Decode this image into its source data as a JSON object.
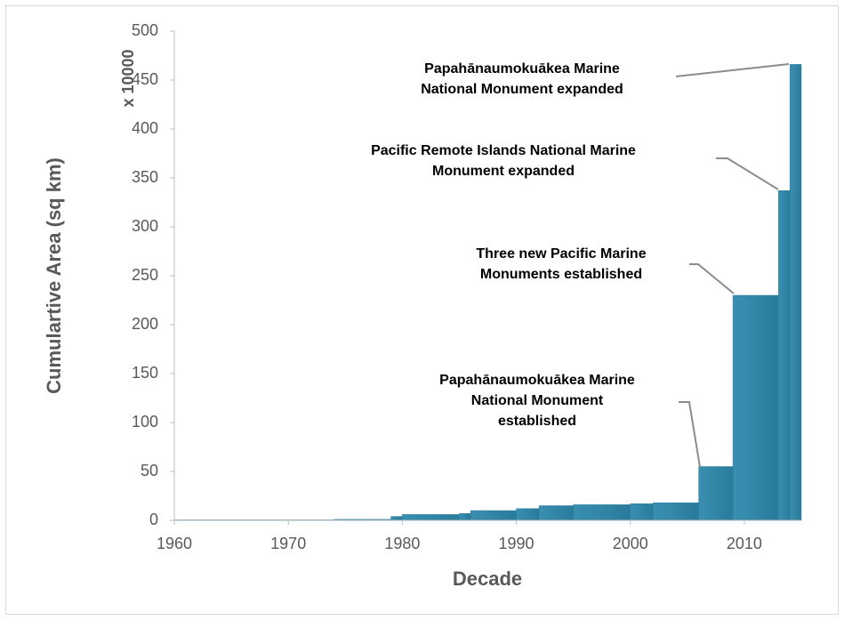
{
  "chart_data": {
    "type": "step_area",
    "xlabel": "Decade",
    "ylabel": "Cumulartive Area (sq km)",
    "yunit": "x 10000",
    "x": [
      1960,
      1974,
      1979,
      1980,
      1985,
      1986,
      1990,
      1992,
      1995,
      2000,
      2002,
      2006,
      2009,
      2013,
      2014
    ],
    "values": [
      0.5,
      1,
      4,
      6,
      7,
      10,
      12,
      15,
      16,
      17,
      18,
      55,
      230,
      337,
      466
    ],
    "color": "#2a7b9b",
    "xlim": [
      1960,
      2015
    ],
    "xticks": [
      1960,
      1970,
      1980,
      1990,
      2000,
      2010
    ],
    "ylim": [
      0,
      500
    ],
    "yticks": [
      0,
      50,
      100,
      150,
      200,
      250,
      300,
      350,
      400,
      450,
      500
    ],
    "annotations": [
      {
        "text": [
          "Papahānaumokuākea Marine",
          "National Monument expanded"
        ]
      },
      {
        "text": [
          "Pacific Remote Islands National Marine",
          "Monument expanded"
        ]
      },
      {
        "text": [
          "Three new Pacific Marine",
          "Monuments established"
        ]
      },
      {
        "text": [
          "Papahānaumokuākea Marine",
          "National Monument",
          "established"
        ]
      }
    ]
  }
}
